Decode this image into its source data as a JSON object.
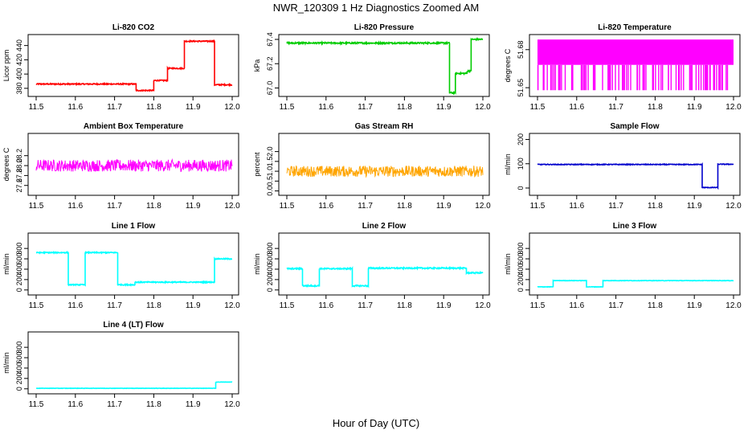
{
  "figure": {
    "title": "NWR_120309  1 Hz Diagnostics Zoomed AM",
    "xlabel": "Hour of Day (UTC)"
  },
  "chart_data": [
    {
      "type": "line",
      "title": "Li-820 CO2",
      "ylabel": "Licor ppm",
      "color": "#ff0000",
      "xlim": [
        11.5,
        12.0
      ],
      "ylim": [
        372,
        452
      ],
      "xticks": [
        "11.5",
        "11.6",
        "11.7",
        "11.8",
        "11.9",
        "12.0"
      ],
      "yticks": [
        380,
        400,
        420,
        440
      ],
      "x": [
        11.5,
        11.755,
        11.755,
        11.8,
        11.8,
        11.835,
        11.835,
        11.878,
        11.878,
        11.955,
        11.955,
        12.0
      ],
      "y": [
        386,
        386,
        377,
        377,
        391,
        391,
        408,
        408,
        446,
        446,
        385,
        385
      ],
      "noise": 0.8
    },
    {
      "type": "line",
      "title": "Li-820 Pressure",
      "ylabel": "kPa",
      "color": "#00cc00",
      "xlim": [
        11.5,
        12.0
      ],
      "ylim": [
        66.95,
        67.42
      ],
      "xticks": [
        "11.5",
        "11.6",
        "11.7",
        "11.8",
        "11.9",
        "12.0"
      ],
      "yticks": [
        "67.0",
        "67.2",
        "67.4"
      ],
      "ytick_values": [
        67.0,
        67.2,
        67.4
      ],
      "x": [
        11.5,
        11.915,
        11.915,
        11.93,
        11.93,
        11.96,
        11.96,
        11.97,
        11.97,
        12.0
      ],
      "y": [
        67.37,
        67.37,
        66.96,
        66.96,
        67.12,
        67.12,
        67.14,
        67.14,
        67.4,
        67.4
      ],
      "noise": 0.006
    },
    {
      "type": "line",
      "title": "Li-820 Temperature",
      "ylabel": "degrees C",
      "color": "#ff00ff",
      "xlim": [
        11.5,
        12.0
      ],
      "ylim": [
        51.645,
        51.69
      ],
      "xticks": [
        "11.5",
        "11.6",
        "11.7",
        "11.8",
        "11.9",
        "12.0"
      ],
      "yticks": [
        "51.65",
        "51.68"
      ],
      "ytick_values": [
        51.65,
        51.68
      ],
      "x": [
        11.5,
        12.0
      ],
      "y": [
        51.668,
        51.668
      ],
      "band": [
        51.648,
        51.688
      ],
      "noise": 0.0
    },
    {
      "type": "line",
      "title": "Ambient Box Temperature",
      "ylabel": "degrees C",
      "color": "#ff00ff",
      "xlim": [
        11.5,
        12.0
      ],
      "ylim": [
        27.45,
        28.6
      ],
      "xticks": [
        "11.5",
        "11.6",
        "11.7",
        "11.8",
        "11.9",
        "12.0"
      ],
      "yticks": [
        "27.6",
        "27.8",
        "28.0",
        "28.2"
      ],
      "ytick_values": [
        27.6,
        27.8,
        28.0,
        28.2
      ],
      "x": [
        11.5,
        12.0
      ],
      "y": [
        28.0,
        28.0
      ],
      "noise": 0.12
    },
    {
      "type": "line",
      "title": "Gas Stream RH",
      "ylabel": "percent",
      "color": "#ffa500",
      "xlim": [
        11.5,
        12.0
      ],
      "ylim": [
        -0.1,
        2.8
      ],
      "xticks": [
        "11.5",
        "11.6",
        "11.7",
        "11.8",
        "11.9",
        "12.0"
      ],
      "yticks": [
        "0.0",
        "0.5",
        "1.0",
        "1.5",
        "2.0"
      ],
      "ytick_values": [
        0.0,
        0.5,
        1.0,
        1.5,
        2.0
      ],
      "x": [
        11.5,
        12.0
      ],
      "y": [
        1.0,
        1.0
      ],
      "noise": 0.28
    },
    {
      "type": "line",
      "title": "Sample Flow",
      "ylabel": "ml/min",
      "color": "#0000cc",
      "xlim": [
        11.5,
        12.0
      ],
      "ylim": [
        -20,
        215
      ],
      "xticks": [
        "11.5",
        "11.6",
        "11.7",
        "11.8",
        "11.9",
        "12.0"
      ],
      "yticks": [
        0,
        100,
        200
      ],
      "x": [
        11.5,
        11.92,
        11.92,
        11.96,
        11.96,
        12.0
      ],
      "y": [
        97,
        97,
        2,
        2,
        98,
        98
      ],
      "noise": 1.5
    },
    {
      "type": "line",
      "title": "Line 1 Flow",
      "ylabel": "ml/min",
      "color": "#00ffff",
      "xlim": [
        11.5,
        12.0
      ],
      "ylim": [
        -50,
        1050
      ],
      "xticks": [
        "11.5",
        "11.6",
        "11.7",
        "11.8",
        "11.9",
        "12.0"
      ],
      "yticks": [
        0,
        200,
        400,
        600,
        800
      ],
      "x": [
        11.5,
        11.582,
        11.582,
        11.625,
        11.625,
        11.708,
        11.708,
        11.752,
        11.752,
        11.955,
        11.955,
        12.0
      ],
      "y": [
        720,
        720,
        100,
        100,
        720,
        720,
        100,
        100,
        150,
        150,
        600,
        600
      ],
      "noise": 10
    },
    {
      "type": "line",
      "title": "Line 2 Flow",
      "ylabel": "ml/min",
      "color": "#00ffff",
      "xlim": [
        11.5,
        12.0
      ],
      "ylim": [
        -50,
        1050
      ],
      "xticks": [
        "11.5",
        "11.6",
        "11.7",
        "11.8",
        "11.9",
        "12.0"
      ],
      "yticks": [
        0,
        200,
        400,
        600,
        800
      ],
      "x": [
        11.5,
        11.54,
        11.54,
        11.583,
        11.583,
        11.667,
        11.667,
        11.708,
        11.708,
        11.958,
        11.958,
        12.0
      ],
      "y": [
        410,
        410,
        80,
        80,
        410,
        410,
        80,
        80,
        420,
        420,
        330,
        330
      ],
      "noise": 12
    },
    {
      "type": "line",
      "title": "Line 3 Flow",
      "ylabel": "ml/min",
      "color": "#00ffff",
      "xlim": [
        11.5,
        12.0
      ],
      "ylim": [
        -50,
        1050
      ],
      "xticks": [
        "11.5",
        "11.6",
        "11.7",
        "11.8",
        "11.9",
        "12.0"
      ],
      "yticks": [
        0,
        200,
        400,
        600,
        800
      ],
      "x": [
        11.5,
        11.54,
        11.54,
        11.625,
        11.625,
        11.667,
        11.667,
        12.0
      ],
      "y": [
        60,
        60,
        180,
        180,
        60,
        60,
        180,
        180
      ],
      "noise": 4
    },
    {
      "type": "line",
      "title": "Line 4 (LT) Flow",
      "ylabel": "ml/min",
      "color": "#00ffff",
      "xlim": [
        11.5,
        12.0
      ],
      "ylim": [
        -50,
        1050
      ],
      "xticks": [
        "11.5",
        "11.6",
        "11.7",
        "11.8",
        "11.9",
        "12.0"
      ],
      "yticks": [
        0,
        200,
        400,
        600,
        800
      ],
      "x": [
        11.5,
        11.958,
        11.958,
        12.0
      ],
      "y": [
        10,
        10,
        130,
        130
      ],
      "noise": 3
    }
  ]
}
